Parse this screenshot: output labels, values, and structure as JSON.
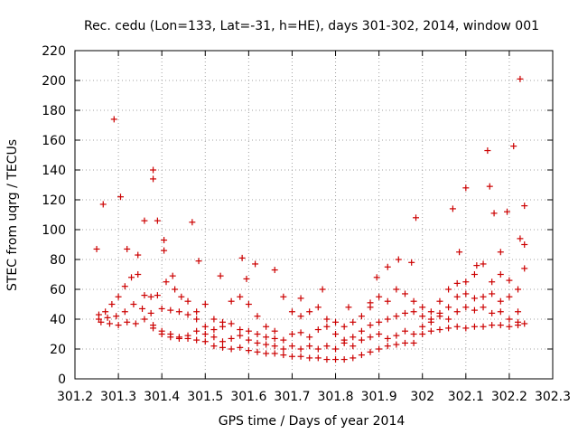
{
  "chart_data": {
    "type": "scatter",
    "title": "Rec. cedu (Lon=133, Lat=-31, h=HE), days 301-302, 2014, window 001",
    "xlabel": "GPS time / Days of year 2014",
    "ylabel": "STEC from uqrg / TECUs",
    "xlim": [
      301.2,
      302.3
    ],
    "ylim": [
      0,
      220
    ],
    "xticks": [
      "301.2",
      "301.3",
      "301.4",
      "301.5",
      "301.6",
      "301.7",
      "301.8",
      "301.9",
      "302",
      "302.1",
      "302.2",
      "302.3"
    ],
    "yticks": [
      "0",
      "20",
      "40",
      "60",
      "80",
      "100",
      "120",
      "140",
      "160",
      "180",
      "200",
      "220"
    ],
    "grid": true,
    "marker": "+",
    "color": "#cc0000",
    "series": [
      {
        "points": [
          [
            301.25,
            87
          ],
          [
            301.265,
            117
          ],
          [
            301.29,
            174
          ],
          [
            301.305,
            122
          ],
          [
            301.32,
            87
          ],
          [
            301.345,
            83
          ],
          [
            301.36,
            106
          ],
          [
            301.38,
            140
          ],
          [
            301.38,
            134
          ],
          [
            301.39,
            106
          ],
          [
            301.405,
            93
          ],
          [
            301.405,
            86
          ],
          [
            301.425,
            69
          ],
          [
            301.47,
            105
          ],
          [
            301.485,
            79
          ],
          [
            301.535,
            69
          ],
          [
            301.585,
            81
          ],
          [
            301.595,
            67
          ],
          [
            301.615,
            77
          ],
          [
            301.66,
            73
          ],
          [
            301.72,
            54
          ],
          [
            301.77,
            60
          ],
          [
            301.83,
            48
          ],
          [
            301.88,
            51
          ],
          [
            301.895,
            68
          ],
          [
            301.92,
            75
          ],
          [
            301.945,
            80
          ],
          [
            301.975,
            78
          ],
          [
            301.985,
            108
          ],
          [
            302.07,
            114
          ],
          [
            302.085,
            85
          ],
          [
            302.1,
            128
          ],
          [
            302.125,
            76
          ],
          [
            302.15,
            153
          ],
          [
            302.155,
            129
          ],
          [
            302.165,
            111
          ],
          [
            302.18,
            85
          ],
          [
            302.195,
            112
          ],
          [
            302.21,
            156
          ],
          [
            302.225,
            201
          ],
          [
            302.225,
            94
          ],
          [
            302.235,
            116
          ],
          [
            302.235,
            90
          ],
          [
            302.235,
            74
          ],
          [
            301.255,
            43
          ],
          [
            301.27,
            45
          ],
          [
            301.285,
            50
          ],
          [
            301.3,
            55
          ],
          [
            301.315,
            62
          ],
          [
            301.33,
            68
          ],
          [
            301.345,
            70
          ],
          [
            301.36,
            56
          ],
          [
            301.375,
            55
          ],
          [
            301.39,
            56
          ],
          [
            301.41,
            65
          ],
          [
            301.43,
            60
          ],
          [
            301.445,
            55
          ],
          [
            301.46,
            52
          ],
          [
            301.48,
            45
          ],
          [
            301.5,
            50
          ],
          [
            301.52,
            40
          ],
          [
            301.54,
            38
          ],
          [
            301.56,
            52
          ],
          [
            301.58,
            55
          ],
          [
            301.6,
            50
          ],
          [
            301.62,
            42
          ],
          [
            301.64,
            35
          ],
          [
            301.66,
            32
          ],
          [
            301.68,
            55
          ],
          [
            301.7,
            45
          ],
          [
            301.72,
            42
          ],
          [
            301.74,
            45
          ],
          [
            301.76,
            48
          ],
          [
            301.78,
            40
          ],
          [
            301.8,
            38
          ],
          [
            301.82,
            35
          ],
          [
            301.84,
            38
          ],
          [
            301.86,
            42
          ],
          [
            301.88,
            48
          ],
          [
            301.9,
            55
          ],
          [
            301.92,
            52
          ],
          [
            301.94,
            60
          ],
          [
            301.96,
            57
          ],
          [
            301.98,
            52
          ],
          [
            302.0,
            48
          ],
          [
            302.02,
            45
          ],
          [
            302.04,
            52
          ],
          [
            302.06,
            60
          ],
          [
            302.08,
            64
          ],
          [
            302.1,
            65
          ],
          [
            302.12,
            70
          ],
          [
            302.14,
            77
          ],
          [
            302.16,
            65
          ],
          [
            302.18,
            70
          ],
          [
            302.2,
            66
          ],
          [
            302.22,
            60
          ],
          [
            301.255,
            40
          ],
          [
            301.275,
            41
          ],
          [
            301.295,
            42
          ],
          [
            301.315,
            45
          ],
          [
            301.335,
            50
          ],
          [
            301.355,
            47
          ],
          [
            301.375,
            44
          ],
          [
            301.4,
            47
          ],
          [
            301.42,
            46
          ],
          [
            301.44,
            45
          ],
          [
            301.46,
            43
          ],
          [
            301.48,
            40
          ],
          [
            301.5,
            35
          ],
          [
            301.52,
            33
          ],
          [
            301.54,
            35
          ],
          [
            301.56,
            37
          ],
          [
            301.58,
            33
          ],
          [
            301.6,
            32
          ],
          [
            301.62,
            30
          ],
          [
            301.64,
            28
          ],
          [
            301.66,
            27
          ],
          [
            301.68,
            26
          ],
          [
            301.7,
            30
          ],
          [
            301.72,
            31
          ],
          [
            301.74,
            28
          ],
          [
            301.76,
            33
          ],
          [
            301.78,
            35
          ],
          [
            301.8,
            30
          ],
          [
            301.82,
            26
          ],
          [
            301.84,
            28
          ],
          [
            301.86,
            32
          ],
          [
            301.88,
            36
          ],
          [
            301.9,
            38
          ],
          [
            301.92,
            40
          ],
          [
            301.94,
            42
          ],
          [
            301.96,
            44
          ],
          [
            301.98,
            45
          ],
          [
            302.0,
            42
          ],
          [
            302.02,
            40
          ],
          [
            302.04,
            44
          ],
          [
            302.06,
            48
          ],
          [
            302.08,
            55
          ],
          [
            302.1,
            57
          ],
          [
            302.12,
            54
          ],
          [
            302.14,
            55
          ],
          [
            302.16,
            57
          ],
          [
            302.18,
            52
          ],
          [
            302.2,
            55
          ],
          [
            302.22,
            45
          ],
          [
            301.26,
            38
          ],
          [
            301.28,
            37
          ],
          [
            301.3,
            36
          ],
          [
            301.32,
            38
          ],
          [
            301.34,
            37
          ],
          [
            301.36,
            40
          ],
          [
            301.38,
            36
          ],
          [
            301.4,
            32
          ],
          [
            301.42,
            30
          ],
          [
            301.44,
            28
          ],
          [
            301.46,
            29
          ],
          [
            301.48,
            32
          ],
          [
            301.5,
            30
          ],
          [
            301.52,
            28
          ],
          [
            301.54,
            25
          ],
          [
            301.56,
            27
          ],
          [
            301.58,
            29
          ],
          [
            301.6,
            26
          ],
          [
            301.62,
            24
          ],
          [
            301.64,
            23
          ],
          [
            301.66,
            22
          ],
          [
            301.68,
            20
          ],
          [
            301.7,
            22
          ],
          [
            301.72,
            20
          ],
          [
            301.74,
            22
          ],
          [
            301.76,
            20
          ],
          [
            301.78,
            22
          ],
          [
            301.8,
            20
          ],
          [
            301.82,
            24
          ],
          [
            301.84,
            22
          ],
          [
            301.86,
            26
          ],
          [
            301.88,
            28
          ],
          [
            301.9,
            30
          ],
          [
            301.92,
            27
          ],
          [
            301.94,
            29
          ],
          [
            301.96,
            32
          ],
          [
            301.98,
            30
          ],
          [
            302.0,
            35
          ],
          [
            302.02,
            38
          ],
          [
            302.04,
            42
          ],
          [
            302.06,
            40
          ],
          [
            302.08,
            45
          ],
          [
            302.1,
            48
          ],
          [
            302.12,
            46
          ],
          [
            302.14,
            48
          ],
          [
            302.16,
            44
          ],
          [
            302.18,
            45
          ],
          [
            302.2,
            40
          ],
          [
            302.22,
            38
          ],
          [
            301.38,
            34
          ],
          [
            301.4,
            30
          ],
          [
            301.42,
            28
          ],
          [
            301.44,
            27
          ],
          [
            301.46,
            27
          ],
          [
            301.48,
            26
          ],
          [
            301.5,
            25
          ],
          [
            301.52,
            22
          ],
          [
            301.54,
            21
          ],
          [
            301.56,
            20
          ],
          [
            301.58,
            21
          ],
          [
            301.6,
            19
          ],
          [
            301.62,
            18
          ],
          [
            301.64,
            17
          ],
          [
            301.66,
            17
          ],
          [
            301.68,
            16
          ],
          [
            301.7,
            15
          ],
          [
            301.72,
            15
          ],
          [
            301.74,
            14
          ],
          [
            301.76,
            14
          ],
          [
            301.78,
            13
          ],
          [
            301.8,
            13
          ],
          [
            301.82,
            13
          ],
          [
            301.84,
            14
          ],
          [
            301.86,
            16
          ],
          [
            301.88,
            18
          ],
          [
            301.9,
            20
          ],
          [
            301.92,
            22
          ],
          [
            301.94,
            23
          ],
          [
            301.96,
            24
          ],
          [
            301.98,
            24
          ],
          [
            302.0,
            30
          ],
          [
            302.02,
            32
          ],
          [
            302.04,
            33
          ],
          [
            302.06,
            34
          ],
          [
            302.08,
            35
          ],
          [
            302.1,
            34
          ],
          [
            302.12,
            35
          ],
          [
            302.14,
            35
          ],
          [
            302.16,
            36
          ],
          [
            302.18,
            36
          ],
          [
            302.2,
            35
          ],
          [
            302.22,
            36
          ],
          [
            302.235,
            37
          ]
        ]
      }
    ]
  }
}
